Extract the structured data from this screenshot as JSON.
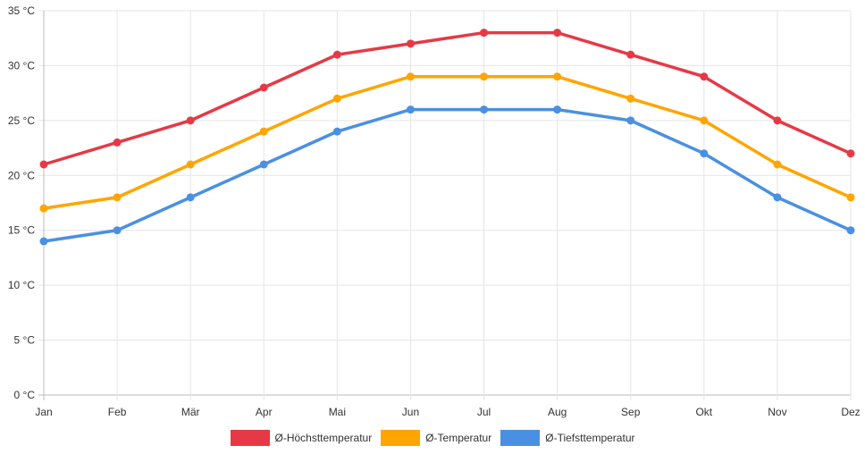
{
  "chart_data": {
    "type": "line",
    "categories": [
      "Jan",
      "Feb",
      "Mär",
      "Apr",
      "Mai",
      "Jun",
      "Jul",
      "Aug",
      "Sep",
      "Okt",
      "Nov",
      "Dez"
    ],
    "ylim": [
      0,
      35
    ],
    "yticks": [
      0,
      5,
      10,
      15,
      20,
      25,
      30,
      35
    ],
    "ytick_labels": [
      "0 °C",
      "5 °C",
      "10 °C",
      "15 °C",
      "20 °C",
      "25 °C",
      "30 °C",
      "35 °C"
    ],
    "grid": true,
    "legend_position": "bottom",
    "series": [
      {
        "name": "Ø-Höchsttemperatur",
        "color": "#e63946",
        "values": [
          21,
          23,
          25,
          28,
          31,
          32,
          33,
          33,
          31,
          29,
          25,
          22
        ]
      },
      {
        "name": "Ø-Temperatur",
        "color": "#ffa500",
        "values": [
          17,
          18,
          21,
          24,
          27,
          29,
          29,
          29,
          27,
          25,
          21,
          18
        ]
      },
      {
        "name": "Ø-Tiefsttemperatur",
        "color": "#4a90e2",
        "values": [
          14,
          15,
          18,
          21,
          24,
          26,
          26,
          26,
          25,
          22,
          18,
          15
        ]
      }
    ]
  }
}
